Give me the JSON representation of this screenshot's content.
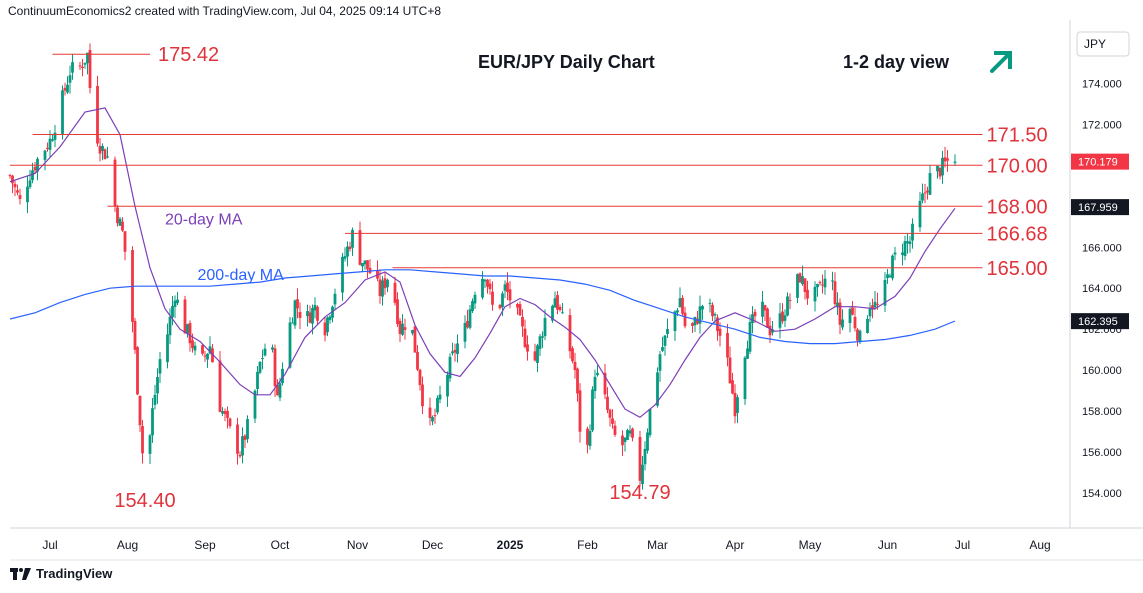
{
  "header": {
    "attribution": "ContinuumEconomics2 created with TradingView.com, Jul 04, 2025 09:14 UTC+8"
  },
  "footer": {
    "brand": "TradingView"
  },
  "colors": {
    "up": "#089981",
    "down": "#f23645",
    "level_line": "#e53935",
    "level_text": "#e0333b",
    "ma20": "#7b3fb8",
    "ma200": "#2962ff",
    "arrow": "#089981",
    "axis_text": "#131722",
    "badge_bg": "#131722"
  },
  "chart_data": {
    "type": "candlestick",
    "title": "EUR/JPY Daily Chart",
    "view_label": "1-2 day view",
    "view_arrow": "arrow-up-right-icon",
    "currency": "JPY",
    "y_ticks": [
      "174.000",
      "172.000",
      "170.000",
      "168.000",
      "166.000",
      "164.000",
      "162.000",
      "160.000",
      "158.000",
      "156.000",
      "154.000"
    ],
    "ylim": [
      152.3,
      176.7
    ],
    "x_ticks": [
      {
        "label": "Jul",
        "day": 16
      },
      {
        "label": "Aug",
        "day": 47
      },
      {
        "label": "Sep",
        "day": 78
      },
      {
        "label": "Oct",
        "day": 108
      },
      {
        "label": "Nov",
        "day": 139
      },
      {
        "label": "Dec",
        "day": 169
      },
      {
        "label": "2025",
        "day": 200
      },
      {
        "label": "Feb",
        "day": 231
      },
      {
        "label": "Mar",
        "day": 259
      },
      {
        "label": "Apr",
        "day": 290
      },
      {
        "label": "May",
        "day": 320
      },
      {
        "label": "Jun",
        "day": 351
      },
      {
        "label": "Jul",
        "day": 381
      },
      {
        "label": "Aug",
        "day": 412
      }
    ],
    "xlim": [
      0,
      424
    ],
    "horizontal_levels": [
      {
        "label": "175.42",
        "value": 175.42,
        "from_day": 17,
        "to_day": 56,
        "label_side": "right",
        "label_day": 56
      },
      {
        "label": "171.50",
        "value": 171.5,
        "from_day": 9,
        "to_day": 389,
        "label_side": "right"
      },
      {
        "label": "170.00",
        "value": 170.0,
        "from_day": 0,
        "to_day": 389,
        "label_side": "right"
      },
      {
        "label": "168.00",
        "value": 168.0,
        "from_day": 39,
        "to_day": 389,
        "label_side": "right"
      },
      {
        "label": "166.68",
        "value": 166.68,
        "from_day": 134,
        "to_day": 389,
        "label_side": "right"
      },
      {
        "label": "165.00",
        "value": 165.0,
        "from_day": 153,
        "to_day": 389,
        "label_side": "right"
      }
    ],
    "price_badges": [
      {
        "label": "170.179",
        "value": 170.179,
        "style": "down"
      },
      {
        "label": "167.959",
        "value": 167.959,
        "style": "ma20"
      },
      {
        "label": "162.395",
        "value": 162.395,
        "style": "ma200"
      }
    ],
    "annotations": [
      {
        "text": "154.40",
        "day": 54,
        "value": 154.4,
        "position": "below"
      },
      {
        "text": "154.79",
        "day": 252,
        "value": 154.79,
        "position": "below"
      },
      {
        "text": "20-day MA",
        "day": 62,
        "value": 167.1,
        "color": "ma20"
      },
      {
        "text": "200-day MA",
        "day": 75,
        "value": 164.4,
        "color": "ma200"
      }
    ],
    "moving_averages": [
      {
        "name": "20-day MA",
        "color": "ma20",
        "points": [
          [
            0,
            169.2
          ],
          [
            10,
            169.6
          ],
          [
            20,
            170.9
          ],
          [
            30,
            172.6
          ],
          [
            38,
            172.8
          ],
          [
            44,
            171.5
          ],
          [
            50,
            168.0
          ],
          [
            56,
            165.0
          ],
          [
            62,
            163.0
          ],
          [
            68,
            162.0
          ],
          [
            76,
            161.4
          ],
          [
            84,
            160.4
          ],
          [
            92,
            159.3
          ],
          [
            98,
            158.8
          ],
          [
            104,
            158.8
          ],
          [
            110,
            159.8
          ],
          [
            118,
            161.6
          ],
          [
            126,
            162.6
          ],
          [
            134,
            163.3
          ],
          [
            142,
            164.4
          ],
          [
            150,
            164.8
          ],
          [
            156,
            164.3
          ],
          [
            162,
            162.2
          ],
          [
            168,
            160.8
          ],
          [
            174,
            159.9
          ],
          [
            180,
            159.7
          ],
          [
            186,
            160.6
          ],
          [
            192,
            161.8
          ],
          [
            198,
            163.1
          ],
          [
            204,
            163.5
          ],
          [
            210,
            163.2
          ],
          [
            216,
            162.6
          ],
          [
            222,
            162.1
          ],
          [
            228,
            161.5
          ],
          [
            234,
            160.5
          ],
          [
            240,
            159.3
          ],
          [
            246,
            158.1
          ],
          [
            252,
            157.7
          ],
          [
            258,
            158.3
          ],
          [
            264,
            159.3
          ],
          [
            270,
            160.5
          ],
          [
            276,
            161.6
          ],
          [
            282,
            162.4
          ],
          [
            290,
            162.8
          ],
          [
            298,
            162.4
          ],
          [
            306,
            161.9
          ],
          [
            314,
            162.0
          ],
          [
            322,
            162.5
          ],
          [
            330,
            163.1
          ],
          [
            338,
            163.1
          ],
          [
            346,
            163.0
          ],
          [
            354,
            163.6
          ],
          [
            360,
            164.5
          ],
          [
            366,
            165.8
          ],
          [
            372,
            166.9
          ],
          [
            378,
            167.9
          ]
        ]
      },
      {
        "name": "200-day MA",
        "color": "ma200",
        "points": [
          [
            0,
            162.5
          ],
          [
            10,
            162.8
          ],
          [
            20,
            163.3
          ],
          [
            30,
            163.7
          ],
          [
            40,
            164.0
          ],
          [
            50,
            164.1
          ],
          [
            60,
            164.1
          ],
          [
            70,
            164.1
          ],
          [
            80,
            164.1
          ],
          [
            90,
            164.2
          ],
          [
            100,
            164.3
          ],
          [
            110,
            164.5
          ],
          [
            120,
            164.6
          ],
          [
            130,
            164.7
          ],
          [
            140,
            164.8
          ],
          [
            150,
            164.9
          ],
          [
            160,
            164.9
          ],
          [
            170,
            164.8
          ],
          [
            180,
            164.7
          ],
          [
            190,
            164.6
          ],
          [
            200,
            164.6
          ],
          [
            210,
            164.5
          ],
          [
            220,
            164.4
          ],
          [
            230,
            164.2
          ],
          [
            240,
            163.9
          ],
          [
            250,
            163.4
          ],
          [
            260,
            163.0
          ],
          [
            270,
            162.6
          ],
          [
            280,
            162.3
          ],
          [
            290,
            162.0
          ],
          [
            300,
            161.6
          ],
          [
            310,
            161.4
          ],
          [
            320,
            161.3
          ],
          [
            330,
            161.3
          ],
          [
            340,
            161.4
          ],
          [
            350,
            161.5
          ],
          [
            360,
            161.7
          ],
          [
            370,
            162.0
          ],
          [
            378,
            162.4
          ]
        ]
      }
    ],
    "price_path": [
      [
        0,
        169.5
      ],
      [
        4,
        168.2
      ],
      [
        8,
        169.6
      ],
      [
        12,
        170.5
      ],
      [
        16,
        171.2
      ],
      [
        20,
        172.8
      ],
      [
        24,
        174.6
      ],
      [
        28,
        174.8
      ],
      [
        31,
        175.42
      ],
      [
        33,
        172.2
      ],
      [
        36,
        171.0
      ],
      [
        39,
        170.4
      ],
      [
        42,
        168.0
      ],
      [
        45,
        166.7
      ],
      [
        48,
        164.0
      ],
      [
        51,
        159.2
      ],
      [
        54,
        154.4
      ],
      [
        57,
        158.0
      ],
      [
        60,
        160.5
      ],
      [
        63,
        161.8
      ],
      [
        66,
        163.8
      ],
      [
        69,
        162.3
      ],
      [
        72,
        161.6
      ],
      [
        76,
        160.2
      ],
      [
        80,
        161.2
      ],
      [
        84,
        158.3
      ],
      [
        88,
        157.0
      ],
      [
        92,
        156.0
      ],
      [
        96,
        157.6
      ],
      [
        100,
        160.3
      ],
      [
        104,
        161.9
      ],
      [
        107,
        158.5
      ],
      [
        110,
        161.2
      ],
      [
        114,
        163.3
      ],
      [
        118,
        162.4
      ],
      [
        122,
        163.1
      ],
      [
        126,
        162.1
      ],
      [
        130,
        163.9
      ],
      [
        134,
        165.6
      ],
      [
        137,
        166.6
      ],
      [
        140,
        165.5
      ],
      [
        144,
        164.8
      ],
      [
        148,
        163.8
      ],
      [
        152,
        164.8
      ],
      [
        156,
        162.0
      ],
      [
        160,
        162.6
      ],
      [
        164,
        159.5
      ],
      [
        167,
        157.0
      ],
      [
        170,
        157.8
      ],
      [
        174,
        159.5
      ],
      [
        178,
        161.0
      ],
      [
        182,
        162.0
      ],
      [
        186,
        164.0
      ],
      [
        190,
        164.8
      ],
      [
        194,
        162.5
      ],
      [
        198,
        164.0
      ],
      [
        202,
        163.0
      ],
      [
        206,
        161.5
      ],
      [
        210,
        160.5
      ],
      [
        214,
        162.5
      ],
      [
        218,
        163.6
      ],
      [
        222,
        162.0
      ],
      [
        226,
        160.0
      ],
      [
        228,
        157.2
      ],
      [
        231,
        156.2
      ],
      [
        234,
        160.0
      ],
      [
        238,
        158.5
      ],
      [
        241,
        157.0
      ],
      [
        244,
        156.2
      ],
      [
        248,
        156.8
      ],
      [
        252,
        154.79
      ],
      [
        256,
        158.0
      ],
      [
        260,
        160.8
      ],
      [
        264,
        162.2
      ],
      [
        268,
        163.5
      ],
      [
        271,
        161.5
      ],
      [
        274,
        162.3
      ],
      [
        278,
        163.5
      ],
      [
        282,
        162.4
      ],
      [
        286,
        161.0
      ],
      [
        290,
        158.2
      ],
      [
        293,
        160.5
      ],
      [
        296,
        162.0
      ],
      [
        300,
        163.2
      ],
      [
        304,
        162.0
      ],
      [
        308,
        162.5
      ],
      [
        312,
        163.5
      ],
      [
        316,
        164.6
      ],
      [
        320,
        163.4
      ],
      [
        324,
        163.9
      ],
      [
        328,
        164.8
      ],
      [
        332,
        162.3
      ],
      [
        336,
        163.0
      ],
      [
        340,
        161.5
      ],
      [
        344,
        163.3
      ],
      [
        348,
        163.0
      ],
      [
        352,
        165.0
      ],
      [
        356,
        166.0
      ],
      [
        360,
        166.3
      ],
      [
        364,
        168.0
      ],
      [
        368,
        169.4
      ],
      [
        372,
        169.8
      ],
      [
        376,
        170.3
      ],
      [
        378,
        170.18
      ]
    ]
  }
}
